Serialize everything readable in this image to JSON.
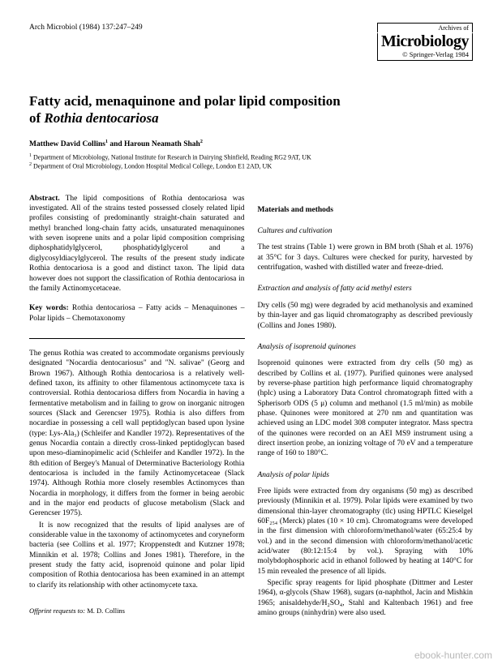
{
  "header": {
    "journal_ref": "Arch Microbiol (1984) 137:247–249",
    "archives_of": "Archives of",
    "journal_name": "Microbiology",
    "copyright": "© Springer-Verlag 1984"
  },
  "title": {
    "line1": "Fatty acid, menaquinone and polar lipid composition",
    "line2_prefix": "of ",
    "line2_species": "Rothia dentocariosa"
  },
  "authors": {
    "author1": "Matthew David Collins",
    "sup1": "1",
    "and": " and ",
    "author2": "Haroun Neamath Shah",
    "sup2": "2"
  },
  "affiliations": {
    "aff1": "Department of Microbiology, National Institute for Research in Dairying Shinfield, Reading RG2 9AT, UK",
    "aff2": "Department of Oral Microbiology, London Hospital Medical College, London E1 2AD, UK"
  },
  "abstract": {
    "label": "Abstract.",
    "text": " The lipid compositions of Rothia dentocariosa was investigated. All of the strains tested possessed closely related lipid profiles consisting of predominantly straight-chain saturated and methyl branched long-chain fatty acids, unsaturated menaquinones with seven isoprene units and a polar lipid composition comprising diphosphatidylglycerol, phosphatidylglycerol and a diglycosyldiacylglycerol. The results of the present study indicate Rothia dentocariosa is a good and distinct taxon. The lipid data however does not support the classification of Rothia dentocariosa in the family Actinomycetaceae."
  },
  "keywords": {
    "label": "Key words:",
    "text": " Rothia dentocariosa – Fatty acids – Menaquinones – Polar lipids – Chemotaxonomy"
  },
  "intro": {
    "p1": "The genus Rothia was created to accommodate organisms previously designated \"Nocardia dentocariosus\" and \"N. salivae\" (Georg and Brown 1967). Although Rothia dentocariosa is a relatively well-defined taxon, its affinity to other filamentous actinomycete taxa is controversial. Rothia dentocariosa differs from Nocardia in having a fermentative metabolism and in failing to grow on inorganic nitrogen sources (Slack and Gerencser 1975). Rothia is also differs from nocardiae in possessing a cell wall peptidoglycan based upon lysine (type: Lys-Ala₃) (Schleifer and Kandler 1972). Representatives of the genus Nocardia contain a directly cross-linked peptidoglycan based upon meso-diaminopimelic acid (Schleifer and Kandler 1972). In the 8th edition of Bergey's Manual of Determinative Bacteriology Rothia dentocariosa is included in the family Actinomycetaceae (Slack 1974). Although Rothia more closely resembles Actinomyces than Nocardia in morphology, it differs from the former in being aerobic and in the major end products of glucose metabolism (Slack and Gerencser 1975).",
    "p2": "It is now recognized that the results of lipid analyses are of considerable value in the taxonomy of actinomycetes and coryneform bacteria (see Collins et al. 1977; Kroppenstedt and Kutzner 1978; Minnikin et al. 1978; Collins and Jones 1981). Therefore, in the present study the fatty acid, isoprenoid quinone and polar lipid composition of Rothia dentocariosa has been examined in an attempt to clarify its relationship with other actinomycete taxa."
  },
  "offprint": {
    "label": "Offprint requests to:",
    "name": " M. D. Collins"
  },
  "methods": {
    "heading": "Materials and methods",
    "cultures": {
      "heading": "Cultures and cultivation",
      "text": "The test strains (Table 1) were grown in BM broth (Shah et al. 1976) at 35°C for 3 days. Cultures were checked for purity, harvested by centrifugation, washed with distilled water and freeze-dried."
    },
    "fatty_acid": {
      "heading": "Extraction and analysis of fatty acid methyl esters",
      "text": "Dry cells (50 mg) were degraded by acid methanolysis and examined by thin-layer and gas liquid chromatography as described previously (Collins and Jones 1980)."
    },
    "quinones": {
      "heading": "Analysis of isoprenoid quinones",
      "text": "Isoprenoid quinones were extracted from dry cells (50 mg) as described by Collins et al. (1977). Purified quinones were analysed by reverse-phase partition high performance liquid chromatography (hplc) using a Laboratory Data Control chromatograph fitted with a Spherisorb ODS (5 μ) column and methanol (1.5 ml/min) as mobile phase. Quinones were monitored at 270 nm and quantitation was achieved using an LDC model 308 computer integrator. Mass spectra of the quinones were recorded on an AEI MS9 instrument using a direct insertion probe, an ionizing voltage of 70 eV and a temperature range of 160 to 180°C."
    },
    "polar_lipids": {
      "heading": "Analysis of polar lipids",
      "p1": "Free lipids were extracted from dry organisms (50 mg) as described previously (Minnikin et al. 1979). Polar lipids were examined by two dimensional thin-layer chromatography (tlc) using HPTLC Kieselgel 60F₂₅₄ (Merck) plates (10 × 10 cm). Chromatograms were developed in the first dimension with chloroform/methanol/water (65:25:4 by vol.) and in the second dimension with chloroform/methanol/acetic acid/water (80:12:15:4 by vol.). Spraying with 10% molybdophosphoric acid in ethanol followed by heating at 140°C for 15 min revealed the presence of all lipids.",
      "p2": "Specific spray reagents for lipid phosphate (Dittmer and Lester 1964), α-glycols (Shaw 1968), sugars (α-naphthol, Jacin and Mishkin 1965; anisaldehyde/H₂SO₄, Stahl and Kaltenbach 1961) and free amino groups (ninhydrin) were also used."
    }
  },
  "watermark": "ebook-hunter.com"
}
